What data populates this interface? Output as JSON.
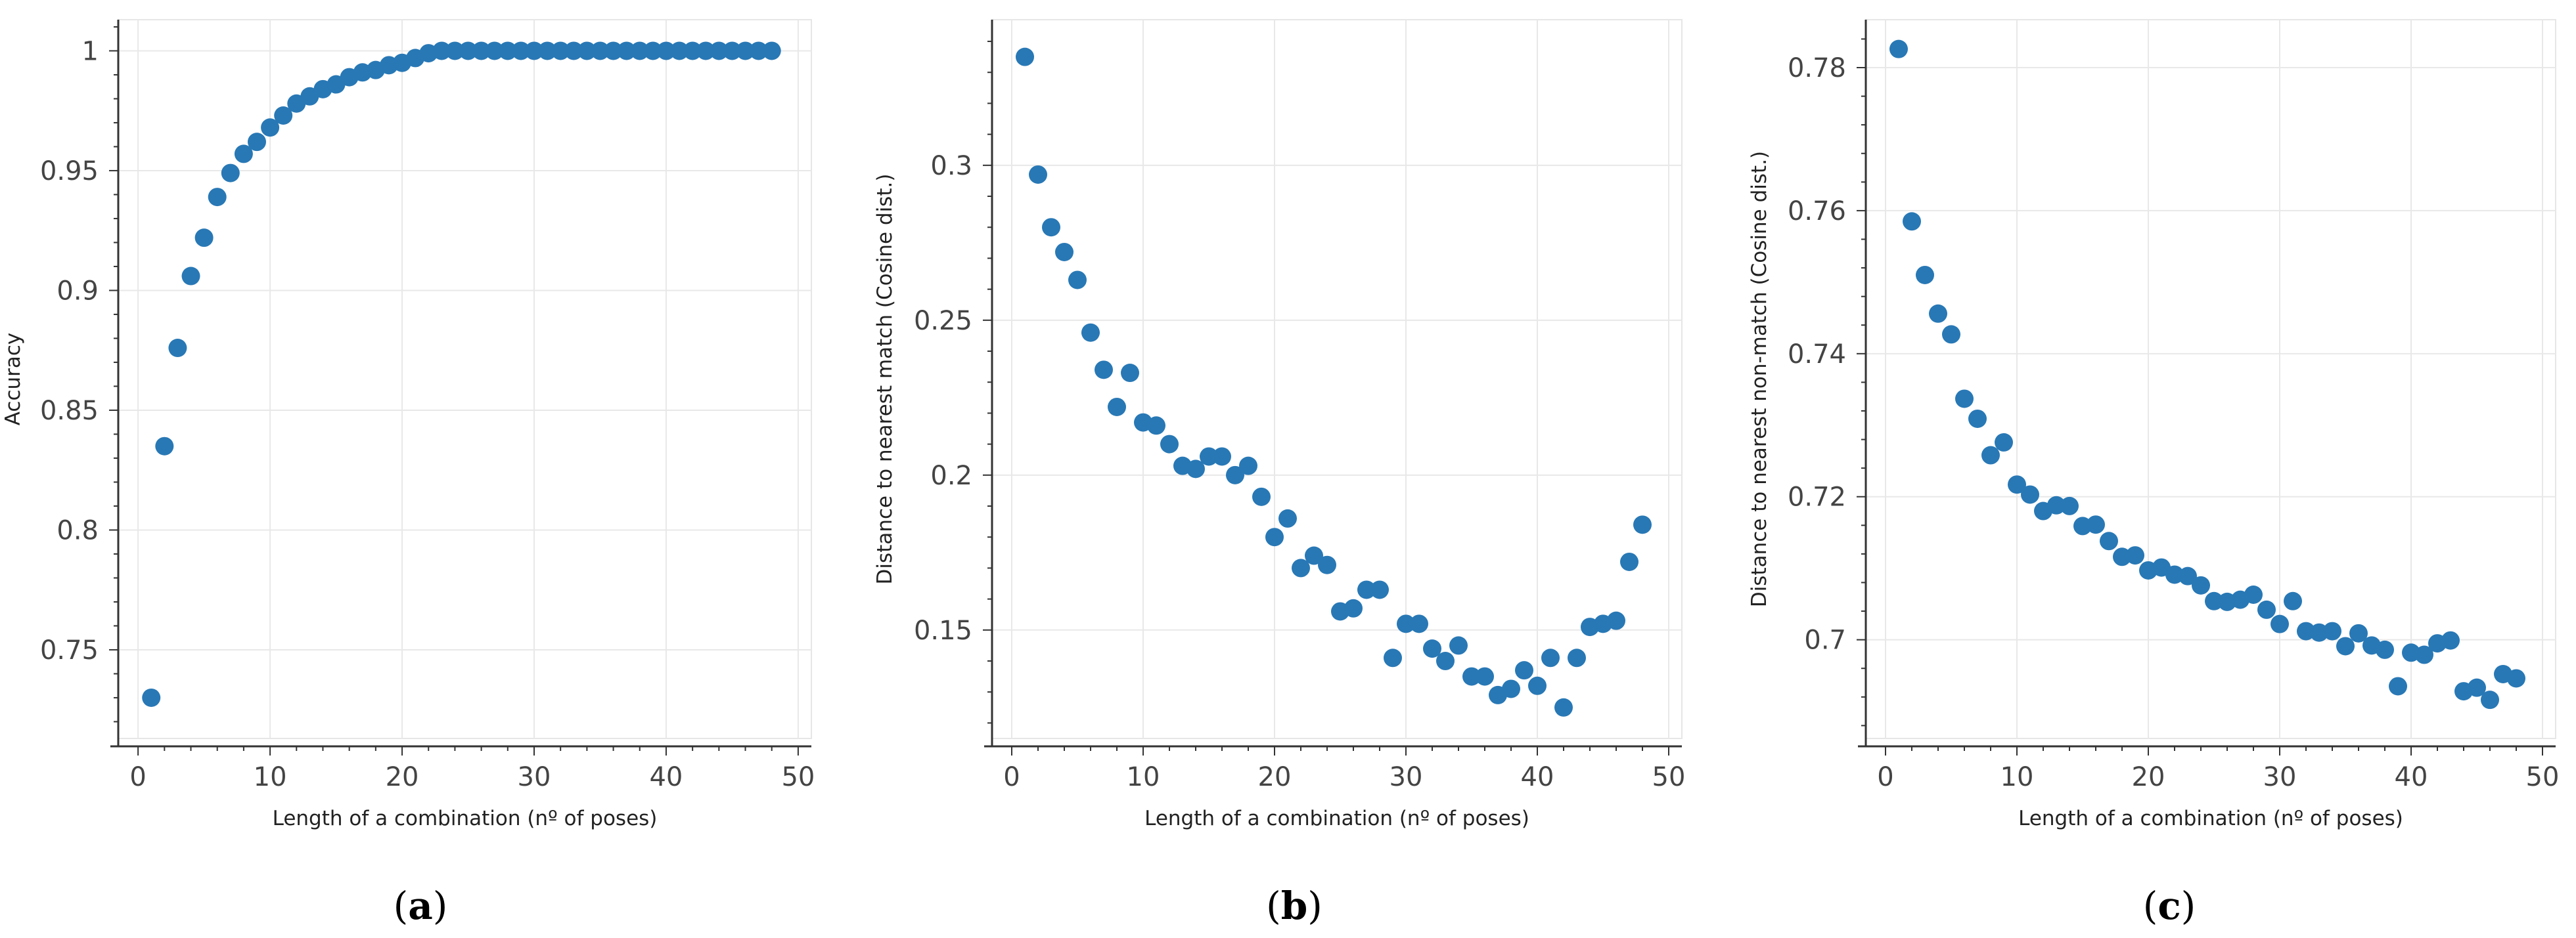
{
  "chart_data": [
    {
      "type": "scatter",
      "panel_label": "a",
      "xlabel": "Length of a combination (nº of poses)",
      "ylabel": "Accuracy",
      "xlim": [
        -1.5,
        51
      ],
      "ylim": [
        0.713,
        1.013
      ],
      "xticks": [
        0,
        10,
        20,
        30,
        40,
        50
      ],
      "yticks": [
        0.75,
        0.8,
        0.85,
        0.9,
        0.95,
        1
      ],
      "ytick_labels": [
        "0.75",
        "0.8",
        "0.85",
        "0.9",
        "0.95",
        "1"
      ],
      "grid": true,
      "series": [
        {
          "name": "accuracy",
          "color": "#2878b5",
          "x": [
            1,
            2,
            3,
            4,
            5,
            6,
            7,
            8,
            9,
            10,
            11,
            12,
            13,
            14,
            15,
            16,
            17,
            18,
            19,
            20,
            21,
            22,
            23,
            24,
            25,
            26,
            27,
            28,
            29,
            30,
            31,
            32,
            33,
            34,
            35,
            36,
            37,
            38,
            39,
            40,
            41,
            42,
            43,
            44,
            45,
            46,
            47,
            48
          ],
          "y": [
            0.73,
            0.835,
            0.876,
            0.906,
            0.922,
            0.939,
            0.949,
            0.957,
            0.962,
            0.968,
            0.973,
            0.978,
            0.981,
            0.984,
            0.986,
            0.989,
            0.991,
            0.992,
            0.994,
            0.995,
            0.997,
            0.999,
            1,
            1,
            1,
            1,
            1,
            1,
            1,
            1,
            1,
            1,
            1,
            1,
            1,
            1,
            1,
            1,
            1,
            1,
            1,
            1,
            1,
            1,
            1,
            1,
            1,
            1
          ]
        }
      ]
    },
    {
      "type": "scatter",
      "panel_label": "b",
      "xlabel": "Length of a combination (nº of poses)",
      "ylabel": "Distance to nearest match (Cosine dist.)",
      "xlim": [
        -1.5,
        51
      ],
      "ylim": [
        0.115,
        0.347
      ],
      "xticks": [
        0,
        10,
        20,
        30,
        40,
        50
      ],
      "yticks": [
        0.15,
        0.2,
        0.25,
        0.3
      ],
      "ytick_labels": [
        "0.15",
        "0.2",
        "0.25",
        "0.3"
      ],
      "grid": true,
      "series": [
        {
          "name": "nearest match distance",
          "color": "#2878b5",
          "x": [
            1,
            2,
            3,
            4,
            5,
            6,
            7,
            8,
            9,
            10,
            11,
            12,
            13,
            14,
            15,
            16,
            17,
            18,
            19,
            20,
            21,
            22,
            23,
            24,
            25,
            26,
            27,
            28,
            29,
            30,
            31,
            32,
            33,
            34,
            35,
            36,
            37,
            38,
            39,
            40,
            41,
            42,
            43,
            44,
            45,
            46,
            47,
            48
          ],
          "y": [
            0.335,
            0.297,
            0.28,
            0.272,
            0.263,
            0.246,
            0.234,
            0.222,
            0.233,
            0.217,
            0.216,
            0.21,
            0.203,
            0.202,
            0.206,
            0.206,
            0.2,
            0.203,
            0.193,
            0.18,
            0.186,
            0.17,
            0.174,
            0.171,
            0.156,
            0.157,
            0.163,
            0.163,
            0.141,
            0.152,
            0.152,
            0.144,
            0.14,
            0.145,
            0.135,
            0.135,
            0.129,
            0.131,
            0.137,
            0.132,
            0.141,
            0.125,
            0.141,
            0.151,
            0.152,
            0.153,
            0.172,
            0.184
          ]
        }
      ]
    },
    {
      "type": "scatter",
      "panel_label": "c",
      "xlabel": "Length of a combination (nº of poses)",
      "ylabel": "Distance to nearest non-match (Cosine dist.)",
      "xlim": [
        -1.5,
        51
      ],
      "ylim": [
        0.6862,
        0.7867
      ],
      "xticks": [
        0,
        10,
        20,
        30,
        40,
        50
      ],
      "yticks": [
        0.7,
        0.72,
        0.74,
        0.76,
        0.78
      ],
      "ytick_labels": [
        "0.7",
        "0.72",
        "0.74",
        "0.76",
        "0.78"
      ],
      "grid": true,
      "series": [
        {
          "name": "nearest non-match distance",
          "color": "#2878b5",
          "x": [
            1,
            2,
            3,
            4,
            5,
            6,
            7,
            8,
            9,
            10,
            11,
            12,
            13,
            14,
            15,
            16,
            17,
            18,
            19,
            20,
            21,
            22,
            23,
            24,
            25,
            26,
            27,
            28,
            29,
            30,
            31,
            32,
            33,
            34,
            35,
            36,
            37,
            38,
            39,
            40,
            41,
            42,
            43,
            44,
            45,
            46,
            47,
            48
          ],
          "y": [
            0.7826,
            0.7585,
            0.751,
            0.7456,
            0.7427,
            0.7337,
            0.7309,
            0.7258,
            0.7276,
            0.7217,
            0.7203,
            0.718,
            0.7188,
            0.7187,
            0.7159,
            0.7161,
            0.7138,
            0.7116,
            0.7118,
            0.7097,
            0.7101,
            0.7091,
            0.7089,
            0.7076,
            0.7054,
            0.7053,
            0.7056,
            0.7063,
            0.7042,
            0.7022,
            0.7054,
            0.7012,
            0.701,
            0.7012,
            0.6991,
            0.7009,
            0.6992,
            0.6986,
            0.6935,
            0.6982,
            0.6979,
            0.6995,
            0.6999,
            0.6928,
            0.6933,
            0.6916,
            0.6952,
            0.6946
          ]
        }
      ]
    }
  ]
}
